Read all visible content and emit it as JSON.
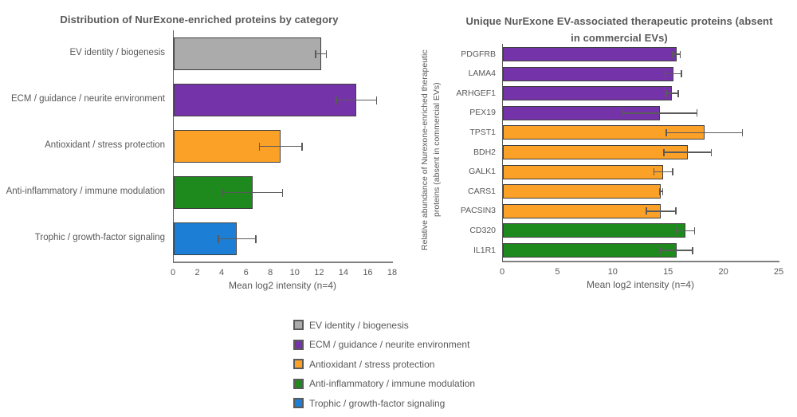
{
  "palette": {
    "gray": "#ABABAB",
    "purple": "#7533A9",
    "orange": "#FBA127",
    "green": "#1E8A1E",
    "blue": "#1C7FD5",
    "bar_border": "#3F3F3F",
    "axis_line": "#808080",
    "text": "#595959",
    "error_bar": "#5A5A5A",
    "background": "#FFFFFF"
  },
  "chart_data": [
    {
      "id": "category-distribution",
      "type": "bar",
      "orientation": "horizontal",
      "title": "Distribution of NurExone-enriched proteins by category",
      "xlabel": "Mean log2 intensity (n=4)",
      "xlim": [
        0,
        18
      ],
      "xticks": [
        0,
        2,
        4,
        6,
        8,
        10,
        12,
        14,
        16,
        18
      ],
      "grid": false,
      "categories": [
        "EV identity / biogenesis",
        "ECM / guidance / neurite environment",
        "Antioxidant / stress protection",
        "Anti-inflammatory / immune modulation",
        "Trophic / growth-factor signaling"
      ],
      "values": [
        12.1,
        15.0,
        8.8,
        6.5,
        5.2
      ],
      "errors": [
        0.5,
        1.7,
        1.8,
        2.5,
        1.6
      ],
      "colors": [
        "gray",
        "purple",
        "orange",
        "green",
        "blue"
      ]
    },
    {
      "id": "unique-therapeutic-proteins",
      "type": "bar",
      "orientation": "horizontal",
      "title": "Unique NurExone EV-associated therapeutic proteins (absent in commercial EVs)",
      "title_lines": [
        "Unique NurExone EV-associated therapeutic proteins (absent",
        "in commercial EVs)"
      ],
      "ylabel": "Relative abundance of Nurexone-enriched therapeutic proteins (absent in commercial EVs)",
      "ylabel_lines": [
        "Relative abundance of Nurexone-enriched therapeutic",
        "proteins (absent in commercial EVs)"
      ],
      "xlabel": "Mean log2 intensity (n=4)",
      "xlim": [
        0,
        25
      ],
      "xticks": [
        0,
        5,
        10,
        15,
        20,
        25
      ],
      "grid": false,
      "categories": [
        "PDGFRB",
        "LAMA4",
        "ARHGEF1",
        "PEX19",
        "TPST1",
        "BDH2",
        "GALK1",
        "CARS1",
        "PACSIN3",
        "CD320",
        "IL1R1"
      ],
      "values": [
        15.7,
        15.4,
        15.3,
        14.2,
        18.2,
        16.7,
        14.5,
        14.3,
        14.3,
        16.5,
        15.7
      ],
      "errors": [
        0.4,
        0.8,
        0.6,
        3.4,
        3.5,
        2.2,
        0.9,
        0.2,
        1.4,
        0.9,
        1.5
      ],
      "colors": [
        "purple",
        "purple",
        "purple",
        "purple",
        "orange",
        "orange",
        "orange",
        "orange",
        "orange",
        "green",
        "green"
      ]
    }
  ],
  "legend": {
    "items": [
      {
        "label": "EV identity / biogenesis",
        "color": "gray"
      },
      {
        "label": "ECM / guidance / neurite environment",
        "color": "purple"
      },
      {
        "label": "Antioxidant / stress protection",
        "color": "orange"
      },
      {
        "label": "Anti-inflammatory / immune modulation",
        "color": "green"
      },
      {
        "label": "Trophic / growth-factor signaling",
        "color": "blue"
      }
    ]
  }
}
